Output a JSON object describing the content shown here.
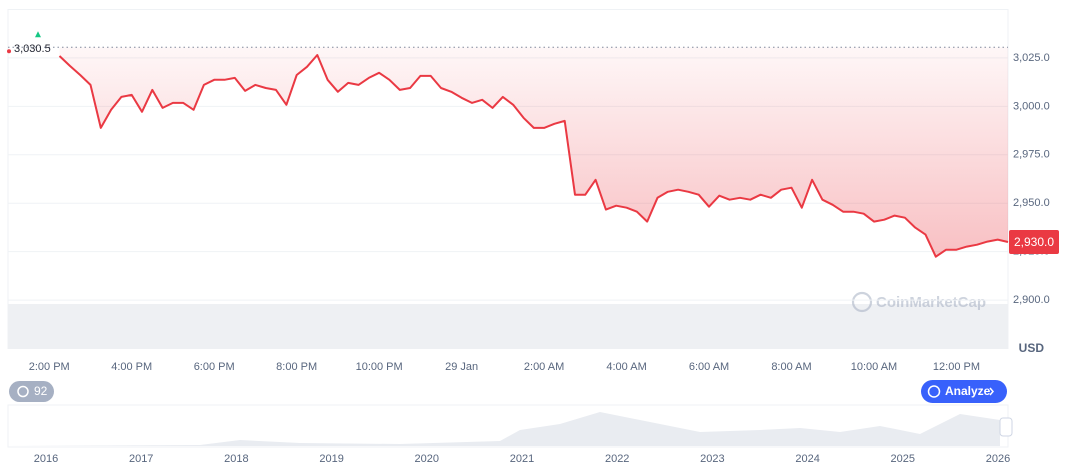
{
  "chart_data": {
    "type": "line",
    "color": "#ea3943",
    "unit_label": "USD",
    "watermark": "CoinMarketCap",
    "categories": [
      null,
      null,
      null,
      null,
      "2:00 PM",
      null,
      null,
      null,
      null,
      null,
      null,
      null,
      "4:00 PM",
      null,
      null,
      null,
      null,
      null,
      null,
      null,
      "6:00 PM",
      null,
      null,
      null,
      null,
      null,
      null,
      null,
      "8:00 PM",
      null,
      null,
      null,
      null,
      null,
      null,
      null,
      "10:00 PM",
      null,
      null,
      null,
      null,
      null,
      null,
      null,
      "29 Jan",
      null,
      null,
      null,
      null,
      null,
      null,
      null,
      "2:00 AM",
      null,
      null,
      null,
      null,
      null,
      null,
      null,
      "4:00 AM",
      null,
      null,
      null,
      null,
      null,
      null,
      null,
      "6:00 AM",
      null,
      null,
      null,
      null,
      null,
      null,
      null,
      "8:00 AM",
      null,
      null,
      null,
      null,
      null,
      null,
      null,
      "10:00 AM",
      null,
      null,
      null,
      null,
      null,
      null,
      null,
      "12:00 PM",
      null,
      null,
      null,
      null,
      null
    ],
    "values": [
      null,
      null,
      null,
      null,
      null,
      3026.0,
      3020.9,
      3016.2,
      3011.1,
      2988.9,
      2998.2,
      3004.9,
      3005.9,
      2997.2,
      3008.5,
      2999.2,
      3001.8,
      3001.8,
      2998.2,
      3011.1,
      3013.7,
      3013.7,
      3014.7,
      3008.0,
      3011.1,
      3009.5,
      3008.5,
      3000.8,
      3016.2,
      3020.4,
      3026.5,
      3013.7,
      3007.5,
      3012.1,
      3011.1,
      3014.7,
      3017.3,
      3013.7,
      3008.5,
      3009.5,
      3015.7,
      3015.7,
      3009.5,
      3007.5,
      3004.4,
      3001.8,
      3003.4,
      2999.2,
      3004.9,
      3000.8,
      2994.1,
      2988.9,
      2988.9,
      2991.0,
      2992.5,
      2954.4,
      2954.4,
      2962.1,
      2946.7,
      2948.7,
      2947.7,
      2945.6,
      2940.5,
      2952.8,
      2955.9,
      2957.0,
      2955.9,
      2954.4,
      2948.2,
      2953.9,
      2951.8,
      2952.8,
      2951.8,
      2954.4,
      2952.8,
      2957.0,
      2958.0,
      2947.7,
      2962.1,
      2951.8,
      2949.2,
      2945.6,
      2945.6,
      2944.6,
      2940.5,
      2941.5,
      2943.6,
      2942.5,
      2937.4,
      2933.8,
      2922.4,
      2926.0,
      2926.0,
      2927.6,
      2928.6,
      2930.2,
      2931.2,
      2930.0
    ],
    "ylim": [
      2875,
      3050
    ],
    "yticks": [
      {
        "value": 2900,
        "label": "2,900.0"
      },
      {
        "value": 2925,
        "label": "2,925.0"
      },
      {
        "value": 2950,
        "label": "2,950.0"
      },
      {
        "value": 2975,
        "label": "2,975.0"
      },
      {
        "value": 3000,
        "label": "3,000.0"
      },
      {
        "value": 3025,
        "label": "3,025.0"
      }
    ],
    "grid": true,
    "reference": {
      "value": 3030.5,
      "label": "3,030.5"
    },
    "current_price": {
      "value": 2930.0,
      "label": "2,930.0"
    },
    "navigator": {
      "labels": [
        "2016",
        "2017",
        "2018",
        "2019",
        "2020",
        "2021",
        "2022",
        "2023",
        "2024",
        "2025",
        "2026"
      ]
    },
    "history_badge": "92",
    "analyze_button": "Analyze"
  }
}
